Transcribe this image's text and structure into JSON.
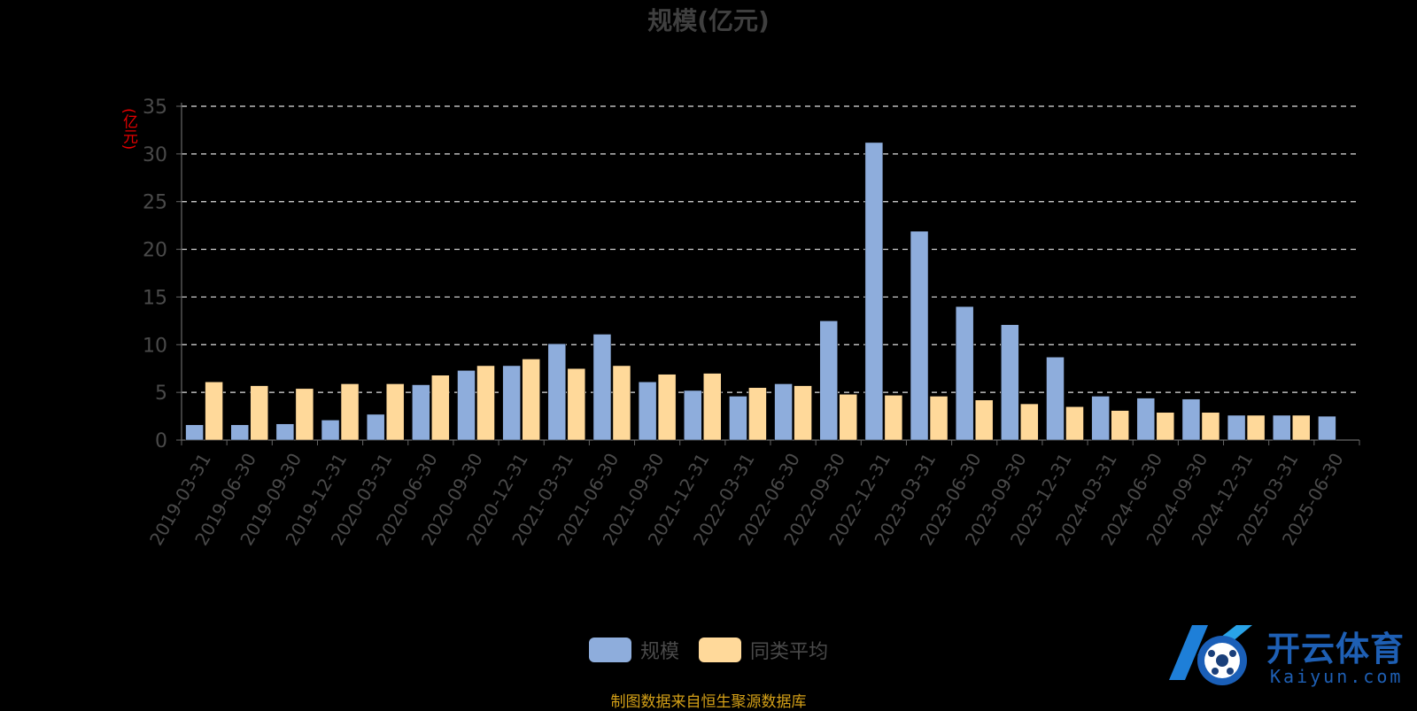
{
  "colors": {
    "background": "#000000",
    "series_scale": "#8eaddc",
    "series_avg": "#ffd99a",
    "axis_unit": "#e60000",
    "source": "#d4a017",
    "logo": "#1e5fb4"
  },
  "chart_data": {
    "type": "bar",
    "title": "规模(亿元)",
    "ylabel": "(亿元)",
    "ylim": [
      0,
      35
    ],
    "yticks": [
      "0",
      "5",
      "10",
      "15",
      "20",
      "25",
      "30",
      "35"
    ],
    "grid": true,
    "legend_position": "bottom",
    "categories": [
      "2019-03-31",
      "2019-06-30",
      "2019-09-30",
      "2019-12-31",
      "2020-03-31",
      "2020-06-30",
      "2020-09-30",
      "2020-12-31",
      "2021-03-31",
      "2021-06-30",
      "2021-09-30",
      "2021-12-31",
      "2022-03-31",
      "2022-06-30",
      "2022-09-30",
      "2022-12-31",
      "2023-03-31",
      "2023-06-30",
      "2023-09-30",
      "2023-12-31",
      "2024-03-31",
      "2024-06-30",
      "2024-09-30",
      "2024-12-31",
      "2025-03-31",
      "2025-06-30"
    ],
    "series": [
      {
        "name": "规模",
        "color": "#8eaddc",
        "values": [
          1.6,
          1.6,
          1.7,
          2.1,
          2.7,
          5.8,
          7.3,
          7.8,
          10.1,
          11.1,
          6.1,
          5.2,
          4.6,
          5.9,
          12.5,
          31.2,
          21.9,
          14.0,
          12.1,
          8.7,
          4.6,
          4.4,
          4.3,
          2.6,
          2.6,
          2.5
        ]
      },
      {
        "name": "同类平均",
        "color": "#ffd99a",
        "values": [
          6.1,
          5.7,
          5.4,
          5.9,
          5.9,
          6.8,
          7.8,
          8.5,
          7.5,
          7.8,
          6.9,
          7.0,
          5.5,
          5.7,
          4.8,
          4.7,
          4.6,
          4.2,
          3.8,
          3.5,
          3.1,
          2.9,
          2.9,
          2.6,
          2.6,
          null
        ]
      }
    ]
  },
  "footer": {
    "source": "制图数据来自恒生聚源数据库"
  },
  "logo": {
    "icon": "kaiyun-logo-icon",
    "name_cn": "开云体育",
    "name_en": "Kaiyun.com"
  }
}
